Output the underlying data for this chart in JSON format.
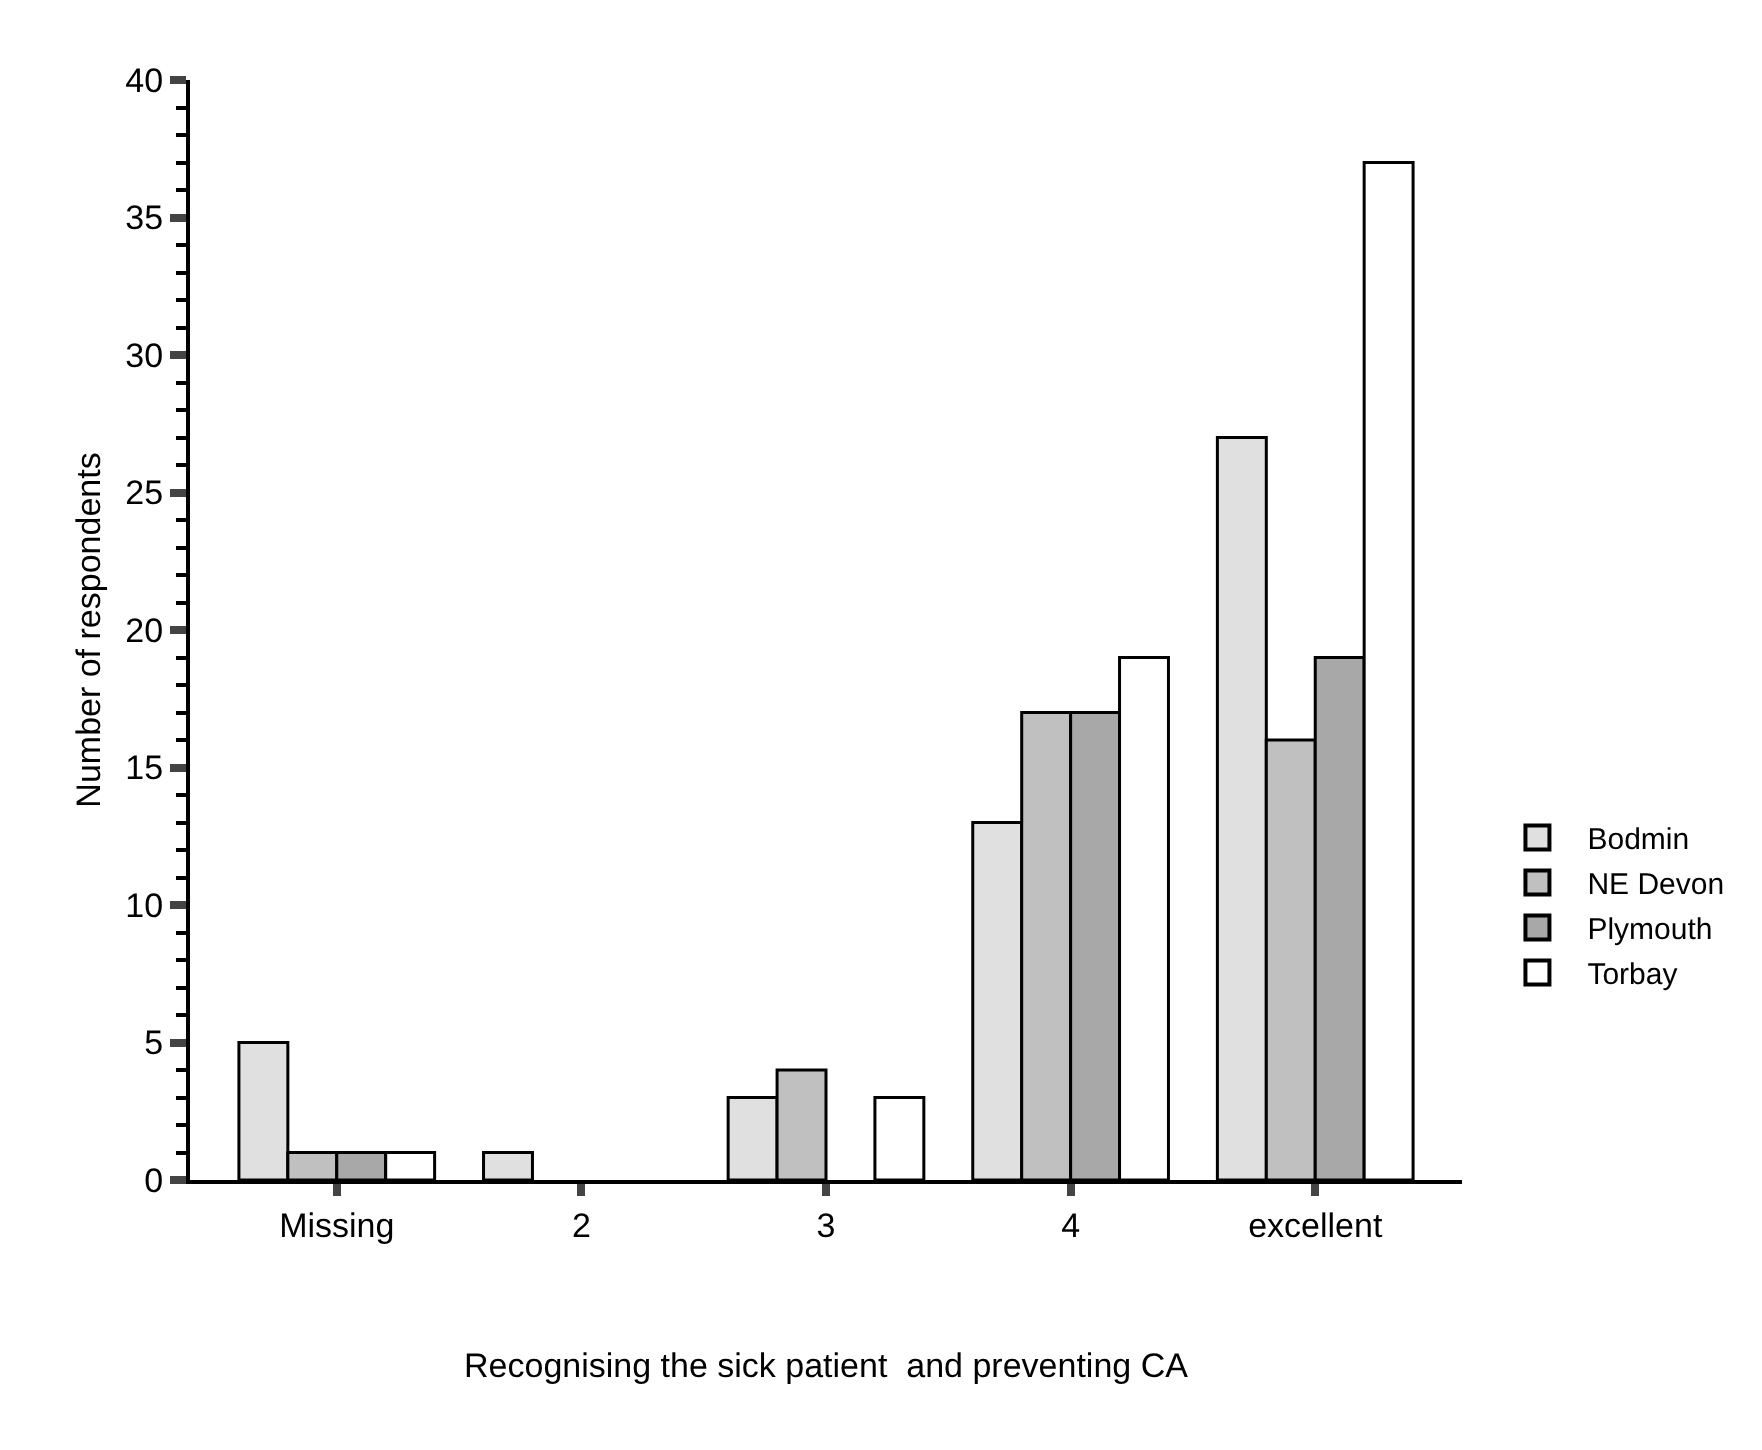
{
  "chart_data": {
    "type": "bar",
    "xlabel": "Recognising the sick patient  and preventing CA",
    "ylabel": "Number of respondents",
    "categories": [
      "Missing",
      "2",
      "3",
      "4",
      "excellent"
    ],
    "series": [
      {
        "name": "Bodmin",
        "color": "#e0e0e0",
        "values": [
          5,
          1,
          3,
          13,
          27
        ]
      },
      {
        "name": "NE Devon",
        "color": "#c0c0c0",
        "values": [
          1,
          0,
          4,
          17,
          16
        ]
      },
      {
        "name": "Plymouth",
        "color": "#a8a8a8",
        "values": [
          1,
          0,
          0,
          17,
          19
        ]
      },
      {
        "name": "Torbay",
        "color": "#ffffff",
        "values": [
          1,
          0,
          3,
          19,
          37
        ]
      }
    ],
    "ylim": [
      0,
      40
    ],
    "yticks": [
      0,
      5,
      10,
      15,
      20,
      25,
      30,
      35,
      40
    ],
    "grid": false,
    "legend": "right"
  }
}
